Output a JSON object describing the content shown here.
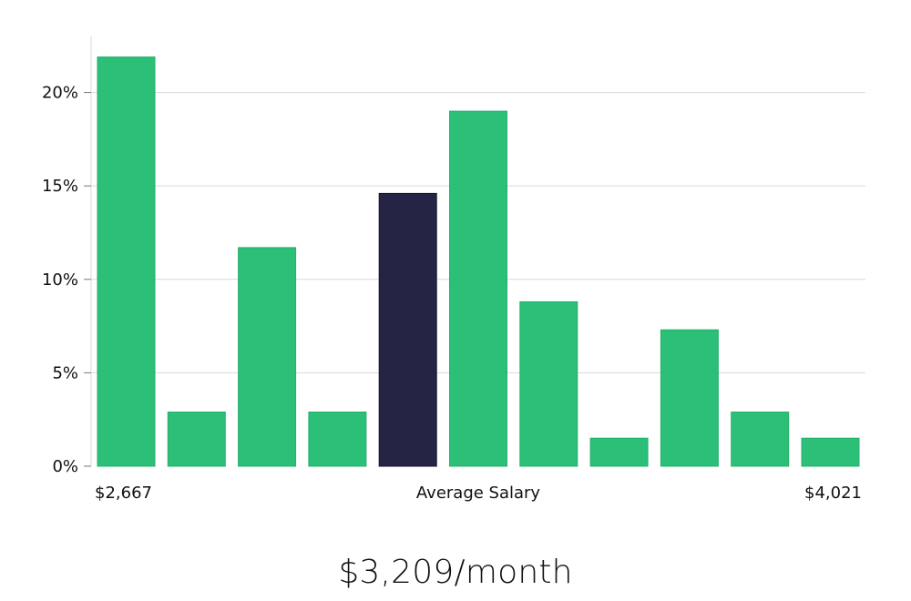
{
  "chart_data": {
    "type": "bar",
    "title": "",
    "values": [
      21.9,
      2.9,
      11.7,
      2.9,
      14.6,
      19.0,
      8.8,
      1.5,
      7.3,
      2.9,
      1.5
    ],
    "highlight_index": 4,
    "ylim": [
      0,
      23
    ],
    "y_ticks": [
      0,
      5,
      10,
      15,
      20
    ],
    "y_tick_labels": [
      "0%",
      "5%",
      "10%",
      "15%",
      "20%"
    ],
    "grid": true,
    "x_min_label": "$2,667",
    "x_center_label": "Average Salary",
    "x_max_label": "$4,021",
    "colors": {
      "bar": "#2bbf78",
      "highlight": "#262445",
      "grid": "#d9d9d9"
    }
  },
  "salary_text": "$3,209/month"
}
